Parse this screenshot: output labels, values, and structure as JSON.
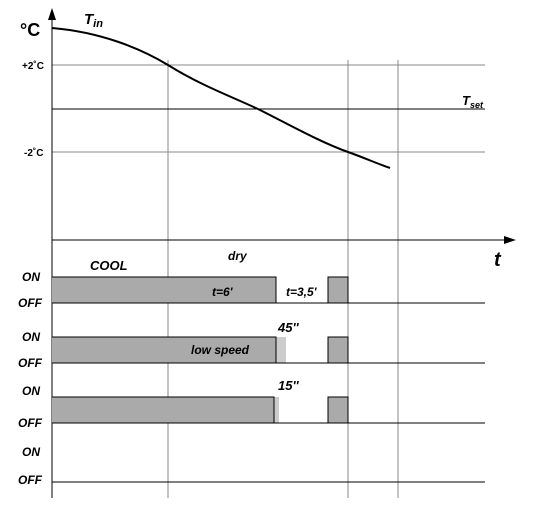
{
  "top_graph": {
    "y_unit": "°C",
    "curve_label": {
      "main": "T",
      "sub": "in"
    },
    "plus_label": "+2˚C",
    "minus_label": "-2˚C",
    "set_label": {
      "main": "T",
      "sub": "set"
    },
    "x_label": "t"
  },
  "timing": {
    "mode_label": "COOL",
    "dry_label": "dry",
    "rows": [
      {
        "on": "ON",
        "off": "OFF",
        "notes": [
          "t=6'",
          "t=3,5'"
        ]
      },
      {
        "on": "ON",
        "off": "OFF",
        "notes": [
          "45''",
          "low speed"
        ]
      },
      {
        "on": "ON",
        "off": "OFF",
        "notes": [
          "15''"
        ]
      },
      {
        "on": "ON",
        "off": "OFF",
        "notes": []
      }
    ]
  }
}
